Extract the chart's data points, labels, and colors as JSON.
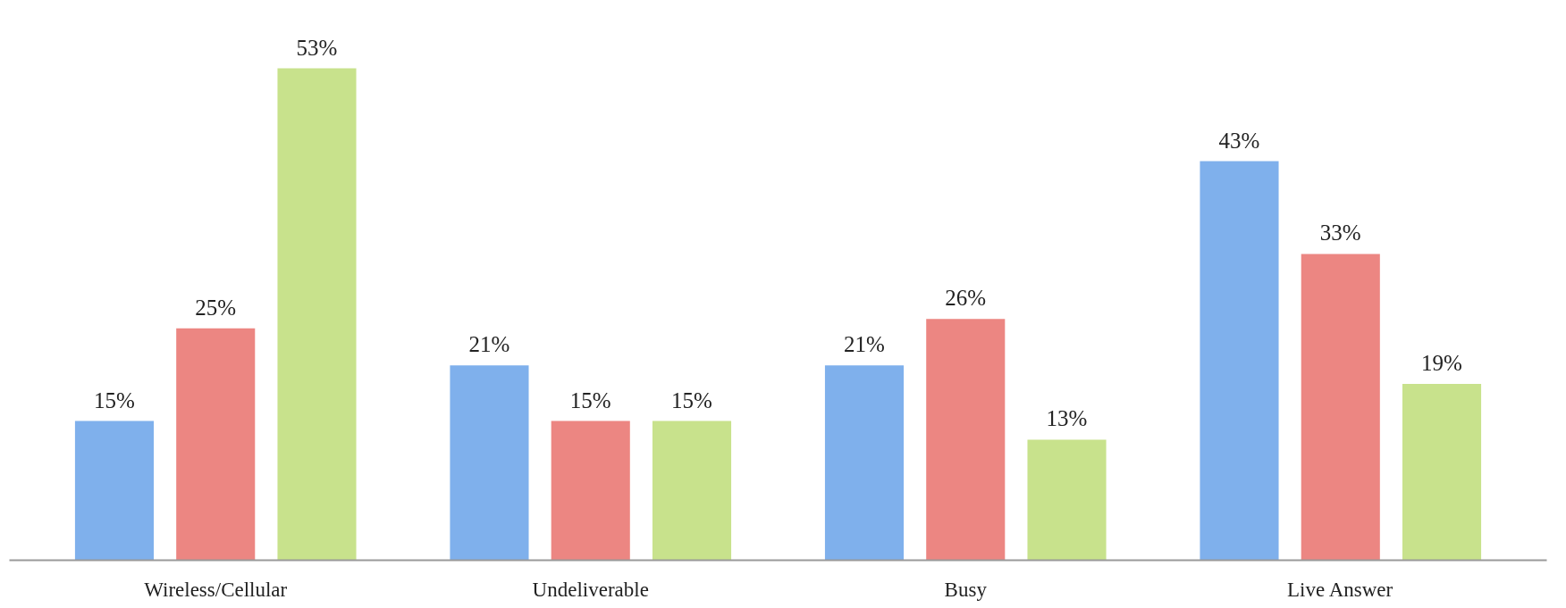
{
  "chart_data": {
    "type": "bar",
    "categories": [
      "Wireless/Cellular",
      "Undeliverable",
      "Busy",
      "Live Answer"
    ],
    "series": [
      {
        "color": "#7fb0ec",
        "values": [
          15,
          21,
          21,
          43
        ],
        "value_labels": [
          "15%",
          "21%",
          "21%",
          "43%"
        ]
      },
      {
        "color": "#ec8682",
        "values": [
          25,
          15,
          26,
          33
        ],
        "value_labels": [
          "25%",
          "15%",
          "26%",
          "33%"
        ]
      },
      {
        "color": "#c8e28c",
        "values": [
          53,
          15,
          13,
          19
        ],
        "value_labels": [
          "53%",
          "15%",
          "13%",
          "19%"
        ]
      }
    ],
    "grid": false
  }
}
